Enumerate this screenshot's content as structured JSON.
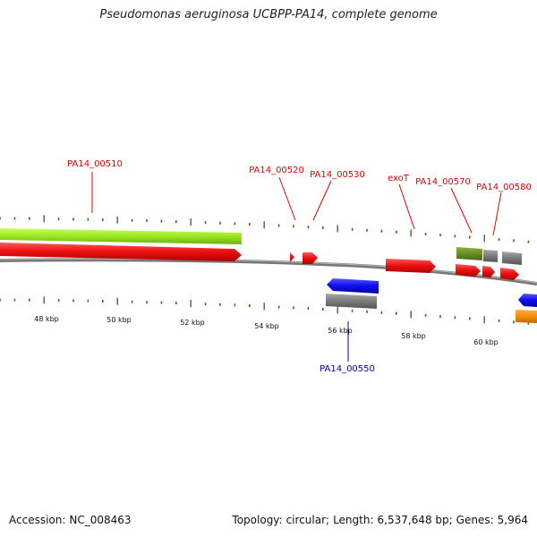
{
  "title": "Pseudomonas aeruginosa UCBPP-PA14, complete genome",
  "footer": {
    "accession_label": "Accession:",
    "accession": "NC_008463",
    "topology_label": "Topology:",
    "topology": "circular",
    "length_label": "Length:",
    "length": "6,537,648 bp",
    "genes_label": "Genes:",
    "genes": "5,964"
  },
  "scale": {
    "labels": [
      "48 kbp",
      "50 kbp",
      "52 kbp",
      "54 kbp",
      "56 kbp",
      "58 kbp",
      "60 kbp"
    ]
  },
  "genes": {
    "forward": [
      "PA14_00510",
      "PA14_00520",
      "PA14_00530",
      "exoT",
      "PA14_00570",
      "PA14_00580"
    ],
    "reverse": [
      "PA14_00550"
    ]
  },
  "colors": {
    "forward_label": "#dd0000",
    "reverse_label": "#0000aa",
    "cds_forward": "#ee1111",
    "cds_reverse": "#1111ee",
    "gene_green": "#99e620",
    "olive": "#6b8e23",
    "gray_feature": "#808080",
    "orange_feature": "#f0900a",
    "tick": "#2a7a1a",
    "backbone": "#808080"
  }
}
